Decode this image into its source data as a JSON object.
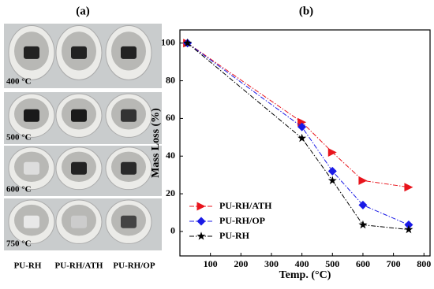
{
  "photo_panel": {
    "label": "(a)",
    "temperatures": [
      "400 °C",
      "500 °C",
      "600 °C",
      "750 °C"
    ],
    "samples": [
      "PU-RH",
      "PU-RH/ATH",
      "PU-RH/OP"
    ]
  },
  "chart_data": {
    "type": "line",
    "label": "(b)",
    "x_label": "Temp. (°C)",
    "y_label": "Mass Loss (%)",
    "x": [
      25,
      400,
      500,
      600,
      750
    ],
    "series": [
      {
        "name": "PU-RH/ATH",
        "color": "#e8141c",
        "marker": "triangle-right",
        "values": [
          100,
          58,
          42,
          27,
          23.5
        ]
      },
      {
        "name": "PU-RH/OP",
        "color": "#1a1ae6",
        "marker": "diamond",
        "values": [
          100,
          55.5,
          32,
          14,
          3.5
        ]
      },
      {
        "name": "PU-RH",
        "color": "#000000",
        "marker": "star",
        "values": [
          100,
          49.5,
          27,
          3.5,
          1
        ]
      }
    ],
    "xlim": [
      0,
      820
    ],
    "xticks": [
      100,
      200,
      300,
      400,
      500,
      600,
      700,
      800
    ],
    "ylim": [
      -13,
      107
    ],
    "yticks": [
      0,
      20,
      40,
      60,
      80,
      100
    ],
    "legend": "lower left"
  }
}
